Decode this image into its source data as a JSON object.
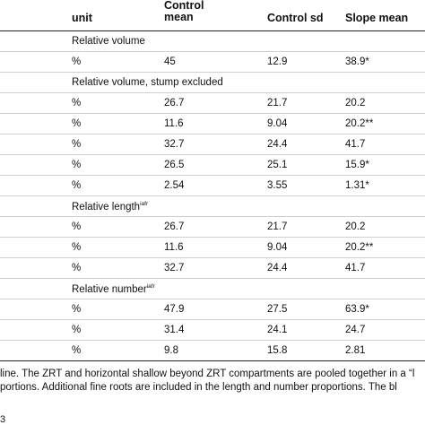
{
  "header": {
    "unit": "unit",
    "control_mean": "Control mean",
    "control_sd": "Control sd",
    "slope_mean": "Slope mean"
  },
  "sections": [
    {
      "title": "Relative volume",
      "sup": "",
      "rows": [
        {
          "unit": "%",
          "control_mean": "45",
          "control_sd": "12.9",
          "slope_mean": "38.9*"
        }
      ]
    },
    {
      "title": "Relative volume, stump excluded",
      "sup": "",
      "rows": [
        {
          "unit": "%",
          "control_mean": "26.7",
          "control_sd": "21.7",
          "slope_mean": "20.2"
        },
        {
          "unit": "%",
          "control_mean": "11.6",
          "control_sd": "9.04",
          "slope_mean": "20.2**"
        },
        {
          "unit": "%",
          "control_mean": "32.7",
          "control_sd": "24.4",
          "slope_mean": "41.7"
        },
        {
          "unit": "%",
          "control_mean": "26.5",
          "control_sd": "25.1",
          "slope_mean": "15.9*"
        },
        {
          "unit": "%",
          "control_mean": "2.54",
          "control_sd": "3.55",
          "slope_mean": "1.31*"
        }
      ]
    },
    {
      "title": "Relative length",
      "sup": "iafr",
      "rows": [
        {
          "unit": "%",
          "control_mean": "26.7",
          "control_sd": "21.7",
          "slope_mean": "20.2"
        },
        {
          "unit": "%",
          "control_mean": "11.6",
          "control_sd": "9.04",
          "slope_mean": "20.2**"
        },
        {
          "unit": "%",
          "control_mean": "32.7",
          "control_sd": "24.4",
          "slope_mean": "41.7"
        }
      ]
    },
    {
      "title": "Relative number",
      "sup": "iafr",
      "rows": [
        {
          "unit": "%",
          "control_mean": "47.9",
          "control_sd": "27.5",
          "slope_mean": "63.9*"
        },
        {
          "unit": "%",
          "control_mean": "31.4",
          "control_sd": "24.1",
          "slope_mean": "24.7"
        },
        {
          "unit": "%",
          "control_mean": "9.8",
          "control_sd": "15.8",
          "slope_mean": "2.81"
        }
      ]
    }
  ],
  "footnote": {
    "line1": "line. The ZRT and horizontal shallow beyond ZRT compartments are pooled together in a “l",
    "line2": "portions. Additional fine roots are included in the length and number proportions. The bl"
  },
  "page_number": "3"
}
